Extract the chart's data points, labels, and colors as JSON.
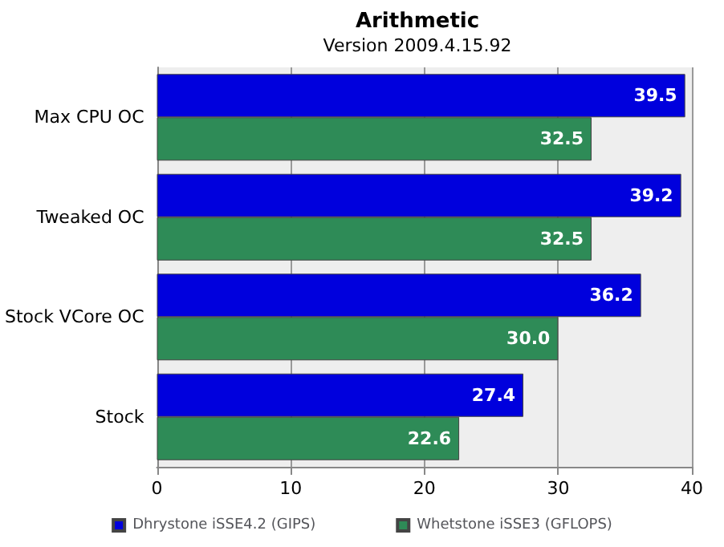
{
  "chart_data": {
    "type": "bar",
    "orientation": "horizontal",
    "title": "Arithmetic",
    "subtitle": "Version 2009.4.15.92",
    "categories": [
      "Max CPU OC",
      "Tweaked OC",
      "Stock VCore OC",
      "Stock"
    ],
    "series": [
      {
        "name": "Dhrystone iSSE4.2 (GIPS)",
        "color": "#0000dd",
        "values": [
          39.5,
          39.2,
          36.2,
          27.4
        ],
        "value_labels": [
          "39.5",
          "39.2",
          "36.2",
          "27.4"
        ]
      },
      {
        "name": "Whetstone iSSE3 (GFLOPS)",
        "color": "#2e8b57",
        "values": [
          32.5,
          32.5,
          30.0,
          22.6
        ],
        "value_labels": [
          "32.5",
          "32.5",
          "30.0",
          "22.6"
        ]
      }
    ],
    "xlim": [
      0,
      40
    ],
    "xticks": [
      0,
      10,
      20,
      30,
      40
    ],
    "grid": "x",
    "legend": "bottom"
  }
}
